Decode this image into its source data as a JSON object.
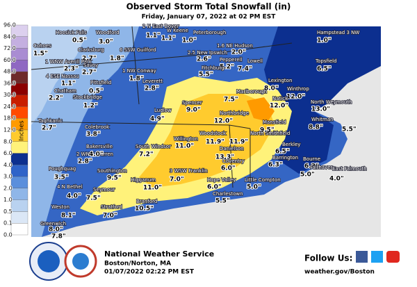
{
  "header": {
    "title": "Observed Storm Total Snowfall (in)",
    "subtitle": "Friday, January 07, 2022 at 02 PM EST"
  },
  "legend": {
    "title": "Inches",
    "labels": [
      "96.0",
      "84.0",
      "72.0",
      "60.0",
      "48.0",
      "36.0",
      "30.0",
      "24.0",
      "18.0",
      "12.0",
      "8.0",
      "6.0",
      "4.0",
      "3.0",
      "2.0",
      "1.0",
      "0.5",
      "0.1",
      "0.0"
    ],
    "colors": [
      "#dcd0ee",
      "#c4afe0",
      "#a98cd2",
      "#8f68c2",
      "#6e2a2a",
      "#8b0000",
      "#c81e00",
      "#ff4a00",
      "#ff9a00",
      "#ffcb2e",
      "#fff27a",
      "#0c2f8f",
      "#2f63c8",
      "#5b8fdc",
      "#8fb6e8",
      "#b9d2f0",
      "#dbe7f6",
      "#ffffff"
    ]
  },
  "stations": [
    {
      "name": "Hoosick Falls",
      "value": "0.5\""
    },
    {
      "name": "Woodford",
      "value": "3.0\""
    },
    {
      "name": "2 N East Dover",
      "value": "1.1\""
    },
    {
      "name": "W Keene",
      "value": "1.1\""
    },
    {
      "name": "Peterborough",
      "value": "1.0\""
    },
    {
      "name": "Hampstead 3 NW",
      "value": "1.0\""
    },
    {
      "name": "Cohoes",
      "value": "1.5\""
    },
    {
      "name": "Clarksburg",
      "value": "2.7\""
    },
    {
      "name": "6 SSW Guilford",
      "value": "1.8\""
    },
    {
      "name": "1 WNW Averill Park",
      "value": "2.3\""
    },
    {
      "name": "Savoy",
      "value": "2.7\""
    },
    {
      "name": "4 ESE Nassau",
      "value": "1.1\""
    },
    {
      "name": "Pittsfield",
      "value": "0.5\""
    },
    {
      "name": "1 NW Conway",
      "value": "1.8\""
    },
    {
      "name": "Chatham",
      "value": "2.2\""
    },
    {
      "name": "Stockbridge",
      "value": "1.2\""
    },
    {
      "name": "Leverett",
      "value": "2.8\""
    },
    {
      "name": "2.5 New Ipswich",
      "value": "2.6\""
    },
    {
      "name": "1.6 NE Hudson",
      "value": "2.0\""
    },
    {
      "name": "Pepperell",
      "value": "5.2\""
    },
    {
      "name": "Fitchburg",
      "value": "5.5\""
    },
    {
      "name": "Lowell",
      "value": "7.4\""
    },
    {
      "name": "Topsfield",
      "value": "6.5\""
    },
    {
      "name": "Lexington",
      "value": "8.0\""
    },
    {
      "name": "Winthrop",
      "value": "12.0\""
    },
    {
      "name": "Marlborough",
      "value": "7.5\""
    },
    {
      "name": "Natick",
      "value": "12.0\""
    },
    {
      "name": "North Weymouth",
      "value": "13.0\""
    },
    {
      "name": "Spencer",
      "value": "9.0\""
    },
    {
      "name": "Ludlow",
      "value": "4.9\""
    },
    {
      "name": "Northbridge",
      "value": "12.0\""
    },
    {
      "name": "Whitman",
      "value": "8.8\""
    },
    {
      "name": "Mansfield",
      "value": "9.5\""
    },
    {
      "value": "5.5\""
    },
    {
      "name": "Taghkanic",
      "value": "2.7\""
    },
    {
      "name": "Colebrook",
      "value": "3.8\""
    },
    {
      "name": "2 WNW Warren",
      "value": "2.8\""
    },
    {
      "name": "Bakersville",
      "value": "4.0\""
    },
    {
      "name": "South Windsor",
      "value": "7.2\""
    },
    {
      "name": "Willington",
      "value": "11.0\""
    },
    {
      "name": "Woodstock",
      "value": "11.9\""
    },
    {
      "name": "North Smithfield",
      "value": "11.9\""
    },
    {
      "name": "Danielson",
      "value": "13.3\""
    },
    {
      "name": "Berkley",
      "value": "6.5\""
    },
    {
      "name": "Poughquag",
      "value": "3.5\""
    },
    {
      "name": "Southington",
      "value": "9.5\""
    },
    {
      "name": "3 WSW Franklin",
      "value": "7.0\""
    },
    {
      "name": "Higganum",
      "value": "11.0\""
    },
    {
      "name": "Coventry",
      "value": "6.0\""
    },
    {
      "name": "Barrington",
      "value": "6.3\""
    },
    {
      "name": "Bourne",
      "value": "6.2\""
    },
    {
      "name": "Fairhaven",
      "value": "5.0\""
    },
    {
      "name": "East Falmouth",
      "value": "4.0\""
    },
    {
      "name": "Hope Valley",
      "value": "6.0\""
    },
    {
      "name": "Little Compton",
      "value": "5.0\""
    },
    {
      "name": "Charlestown",
      "value": "5.5\""
    },
    {
      "name": "4 N Bethel",
      "value": "4.0\""
    },
    {
      "name": "Seymour",
      "value": "7.5\""
    },
    {
      "name": "Weston",
      "value": "8.1\""
    },
    {
      "name": "Stratford",
      "value": "7.0\""
    },
    {
      "name": "Branford",
      "value": "10.5\""
    },
    {
      "name": "Greenwich",
      "value": "8.0\""
    },
    {
      "value": "7.8\""
    }
  ],
  "footer": {
    "org": "National Weather Service",
    "office": "Boston/Norton, MA",
    "timestamp": "01/07/2022 02:22 PM EST",
    "follow": "Follow Us:",
    "url": "weather.gov/Boston"
  }
}
